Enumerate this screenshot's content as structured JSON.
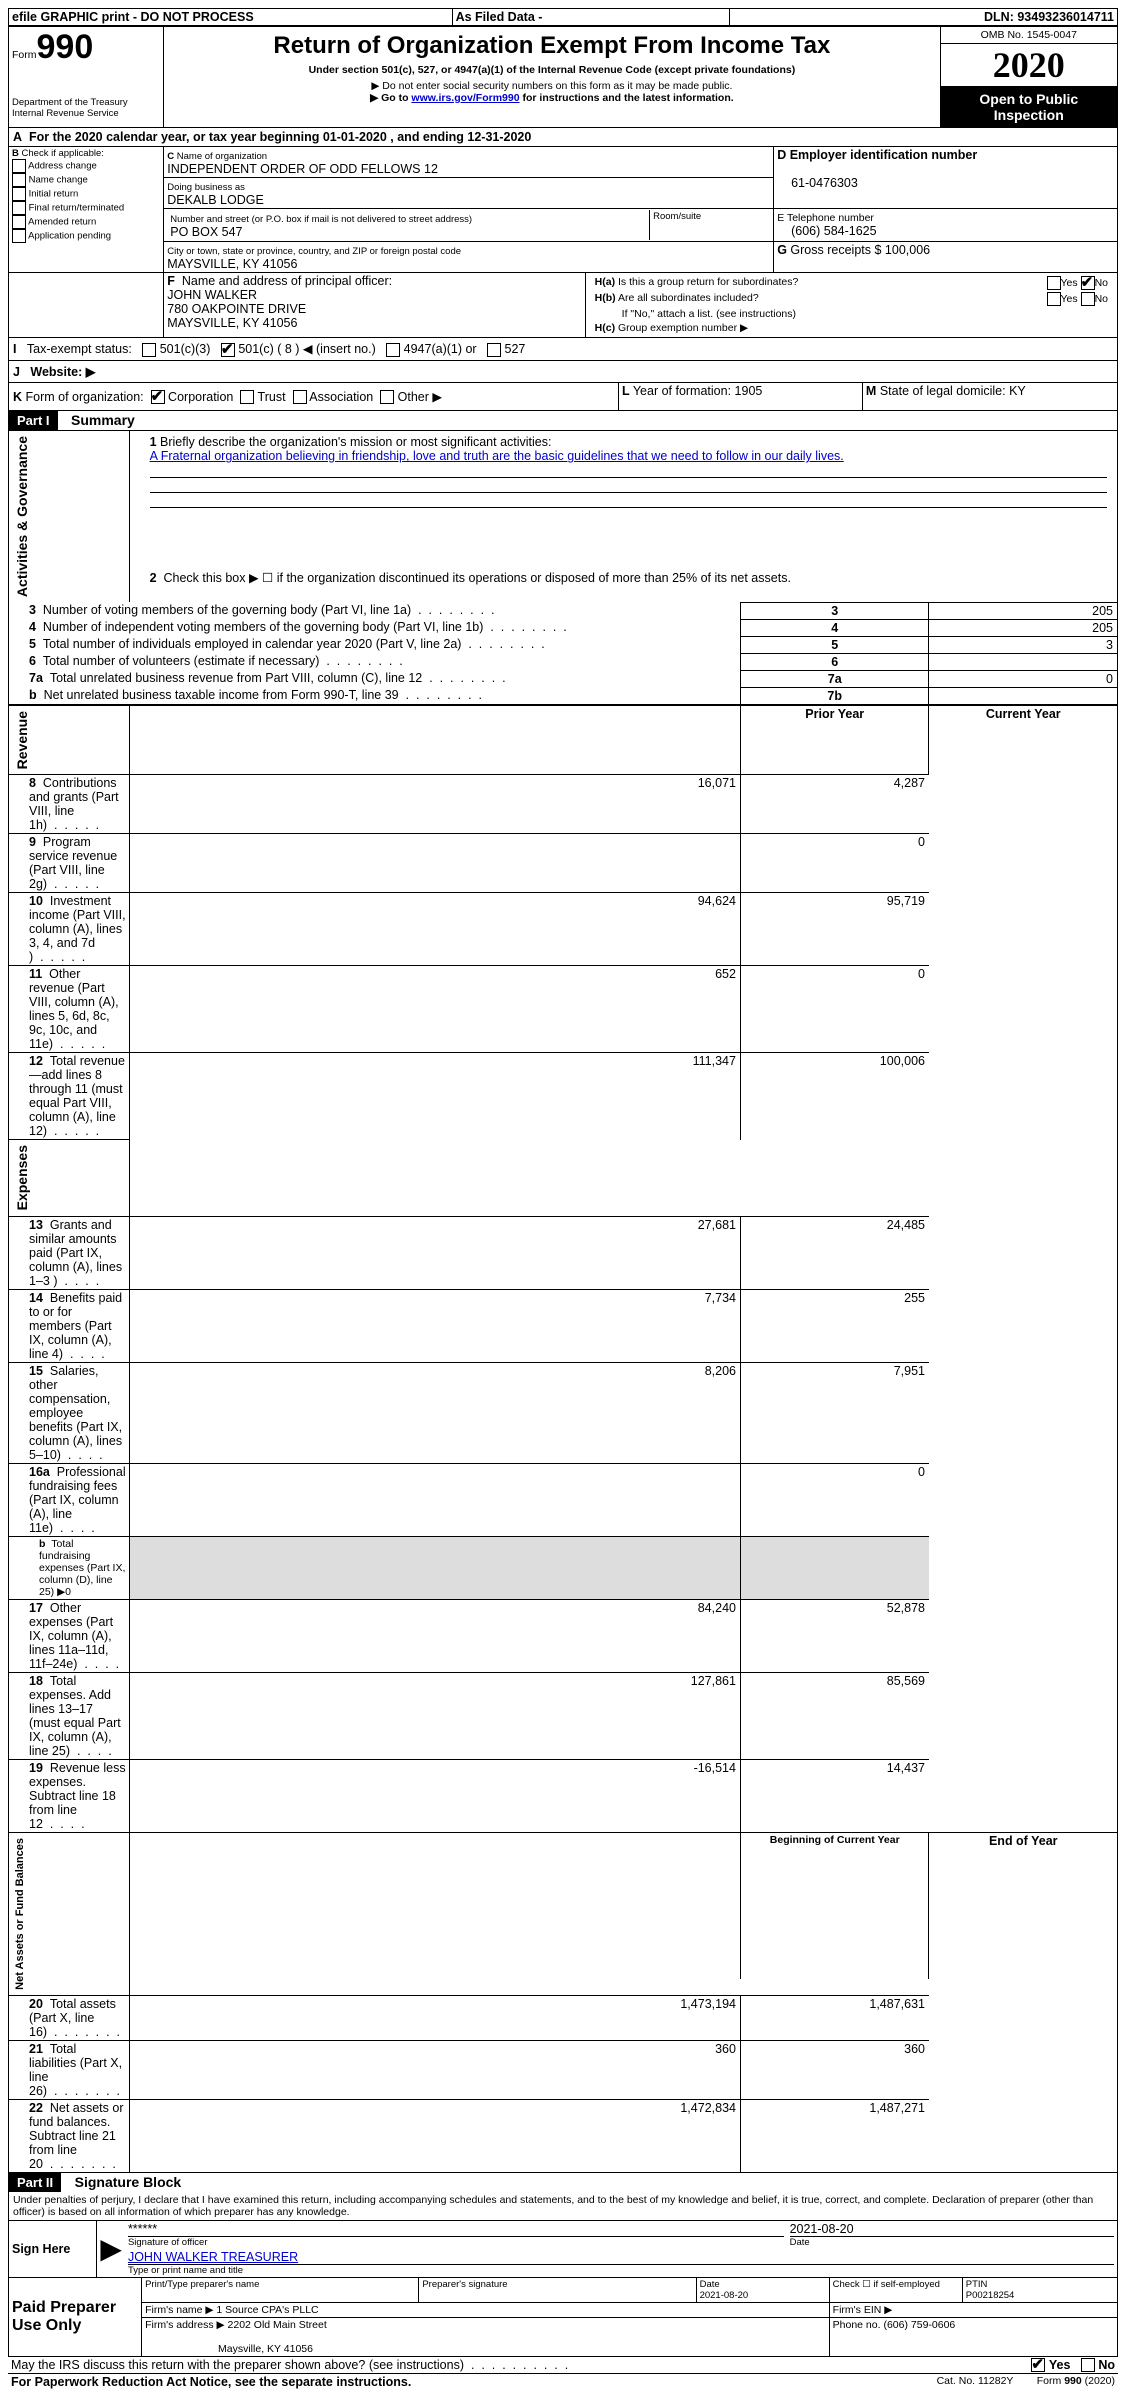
{
  "topbar": {
    "efile": "efile GRAPHIC print - DO NOT PROCESS",
    "asfiled": "As Filed Data -",
    "dln_label": "DLN:",
    "dln": "93493236014711"
  },
  "header": {
    "form_label": "Form",
    "form_number": "990",
    "dept1": "Department of the Treasury",
    "dept2": "Internal Revenue Service",
    "title": "Return of Organization Exempt From Income Tax",
    "subtitle": "Under section 501(c), 527, or 4947(a)(1) of the Internal Revenue Code (except private foundations)",
    "note1": "▶ Do not enter social security numbers on this form as it may be made public.",
    "note2_pre": "▶ Go to ",
    "note2_link": "www.irs.gov/Form990",
    "note2_post": " for instructions and the latest information.",
    "omb": "OMB No. 1545-0047",
    "year": "2020",
    "open": "Open to Public Inspection"
  },
  "a_line": {
    "pre": "For the 2020 calendar year, or tax year beginning ",
    "begin": "01-01-2020",
    "mid": " , and ending ",
    "end": "12-31-2020"
  },
  "b": {
    "title": "Check if applicable:",
    "items": [
      "Address change",
      "Name change",
      "Initial return",
      "Final return/terminated",
      "Amended return",
      "Application pending"
    ]
  },
  "c": {
    "name_label": "Name of organization",
    "name": "INDEPENDENT ORDER OF ODD FELLOWS 12",
    "dba_label": "Doing business as",
    "dba": "DEKALB LODGE",
    "street_label": "Number and street (or P.O. box if mail is not delivered to street address)",
    "room_label": "Room/suite",
    "street": "PO BOX 547",
    "city_label": "City or town, state or province, country, and ZIP or foreign postal code",
    "city": "MAYSVILLE, KY  41056"
  },
  "d": {
    "label": "Employer identification number",
    "value": "61-0476303"
  },
  "e": {
    "label": "Telephone number",
    "value": "(606) 584-1625"
  },
  "g": {
    "label": "Gross receipts $",
    "value": "100,006"
  },
  "f": {
    "label": "Name and address of principal officer:",
    "name": "JOHN WALKER",
    "addr1": "780 OAKPOINTE DRIVE",
    "addr2": "MAYSVILLE, KY  41056"
  },
  "h": {
    "a_label": "Is this a group return for subordinates?",
    "b_label": "Are all subordinates included?",
    "ifno": "If \"No,\" attach a list. (see instructions)",
    "c_label": "Group exemption number ▶",
    "yes": "Yes",
    "no": "No"
  },
  "i": {
    "label": "Tax-exempt status:",
    "opts": [
      "501(c)(3)",
      "501(c) ( 8 ) ◀ (insert no.)",
      "4947(a)(1) or",
      "527"
    ],
    "checked_index": 1
  },
  "j": {
    "label": "Website: ▶"
  },
  "k": {
    "label": "Form of organization:",
    "opts": [
      "Corporation",
      "Trust",
      "Association",
      "Other ▶"
    ],
    "checked_index": 0
  },
  "l": {
    "label": "Year of formation:",
    "value": "1905"
  },
  "m": {
    "label": "State of legal domicile:",
    "value": "KY"
  },
  "partI": {
    "tag": "Part I",
    "title": "Summary",
    "mission_label": "Briefly describe the organization's mission or most significant activities:",
    "mission": "A Fraternal organization believing in friendship, love and truth are the basic guidelines that we need to follow in our daily lives.",
    "line2": "Check this box ▶ ☐ if the organization discontinued its operations or disposed of more than 25% of its net assets.",
    "col_prior": "Prior Year",
    "col_current": "Current Year",
    "col_begin": "Beginning of Current Year",
    "col_end": "End of Year",
    "line16b": "Total fundraising expenses (Part IX, column (D), line 25) ▶0",
    "governance_rows": [
      {
        "num": "3",
        "text": "Number of voting members of the governing body (Part VI, line 1a)",
        "box": "3",
        "val": "205"
      },
      {
        "num": "4",
        "text": "Number of independent voting members of the governing body (Part VI, line 1b)",
        "box": "4",
        "val": "205"
      },
      {
        "num": "5",
        "text": "Total number of individuals employed in calendar year 2020 (Part V, line 2a)",
        "box": "5",
        "val": "3"
      },
      {
        "num": "6",
        "text": "Total number of volunteers (estimate if necessary)",
        "box": "6",
        "val": ""
      },
      {
        "num": "7a",
        "text": "Total unrelated business revenue from Part VIII, column (C), line 12",
        "box": "7a",
        "val": "0"
      },
      {
        "num": "b",
        "text": "Net unrelated business taxable income from Form 990-T, line 39",
        "box": "7b",
        "val": ""
      }
    ],
    "revenue_rows": [
      {
        "num": "8",
        "text": "Contributions and grants (Part VIII, line 1h)",
        "prior": "16,071",
        "curr": "4,287"
      },
      {
        "num": "9",
        "text": "Program service revenue (Part VIII, line 2g)",
        "prior": "",
        "curr": "0"
      },
      {
        "num": "10",
        "text": "Investment income (Part VIII, column (A), lines 3, 4, and 7d )",
        "prior": "94,624",
        "curr": "95,719"
      },
      {
        "num": "11",
        "text": "Other revenue (Part VIII, column (A), lines 5, 6d, 8c, 9c, 10c, and 11e)",
        "prior": "652",
        "curr": "0"
      },
      {
        "num": "12",
        "text": "Total revenue—add lines 8 through 11 (must equal Part VIII, column (A), line 12)",
        "prior": "111,347",
        "curr": "100,006"
      }
    ],
    "expense_rows": [
      {
        "num": "13",
        "text": "Grants and similar amounts paid (Part IX, column (A), lines 1–3 )",
        "prior": "27,681",
        "curr": "24,485"
      },
      {
        "num": "14",
        "text": "Benefits paid to or for members (Part IX, column (A), line 4)",
        "prior": "7,734",
        "curr": "255"
      },
      {
        "num": "15",
        "text": "Salaries, other compensation, employee benefits (Part IX, column (A), lines 5–10)",
        "prior": "8,206",
        "curr": "7,951"
      },
      {
        "num": "16a",
        "text": "Professional fundraising fees (Part IX, column (A), line 11e)",
        "prior": "",
        "curr": "0"
      },
      {
        "num": "17",
        "text": "Other expenses (Part IX, column (A), lines 11a–11d, 11f–24e)",
        "prior": "84,240",
        "curr": "52,878"
      },
      {
        "num": "18",
        "text": "Total expenses. Add lines 13–17 (must equal Part IX, column (A), line 25)",
        "prior": "127,861",
        "curr": "85,569"
      },
      {
        "num": "19",
        "text": "Revenue less expenses. Subtract line 18 from line 12",
        "prior": "-16,514",
        "curr": "14,437"
      }
    ],
    "net_rows": [
      {
        "num": "20",
        "text": "Total assets (Part X, line 16)",
        "prior": "1,473,194",
        "curr": "1,487,631"
      },
      {
        "num": "21",
        "text": "Total liabilities (Part X, line 26)",
        "prior": "360",
        "curr": "360"
      },
      {
        "num": "22",
        "text": "Net assets or fund balances. Subtract line 21 from line 20",
        "prior": "1,472,834",
        "curr": "1,487,271"
      }
    ]
  },
  "sections": {
    "gov": "Activities & Governance",
    "rev": "Revenue",
    "exp": "Expenses",
    "net": "Net Assets or Fund Balances"
  },
  "partII": {
    "tag": "Part II",
    "title": "Signature Block",
    "perjury": "Under penalties of perjury, I declare that I have examined this return, including accompanying schedules and statements, and to the best of my knowledge and belief, it is true, correct, and complete. Declaration of preparer (other than officer) is based on all information of which preparer has any knowledge."
  },
  "sign": {
    "here": "Sign Here",
    "stars": "******",
    "sig_label": "Signature of officer",
    "date_label": "Date",
    "date": "2021-08-20",
    "name": "JOHN WALKER TREASURER",
    "name_label": "Type or print name and title"
  },
  "paid": {
    "title": "Paid Preparer Use Only",
    "print_label": "Print/Type preparer's name",
    "sig_label": "Preparer's signature",
    "date_label": "Date",
    "date": "2021-08-20",
    "check_label": "Check ☐ if self-employed",
    "ptin_label": "PTIN",
    "ptin": "P00218254",
    "firm_name_label": "Firm's name    ▶",
    "firm_name": "1 Source CPA's PLLC",
    "firm_ein_label": "Firm's EIN ▶",
    "firm_addr_label": "Firm's address ▶",
    "firm_addr1": "2202 Old Main Street",
    "firm_addr2": "Maysville, KY  41056",
    "phone_label": "Phone no.",
    "phone": "(606) 759-0606"
  },
  "footer": {
    "discuss": "May the IRS discuss this return with the preparer shown above? (see instructions)",
    "paperwork": "For Paperwork Reduction Act Notice, see the separate instructions.",
    "cat": "Cat. No. 11282Y",
    "form": "Form 990 (2020)",
    "yes": "Yes",
    "no": "No"
  }
}
